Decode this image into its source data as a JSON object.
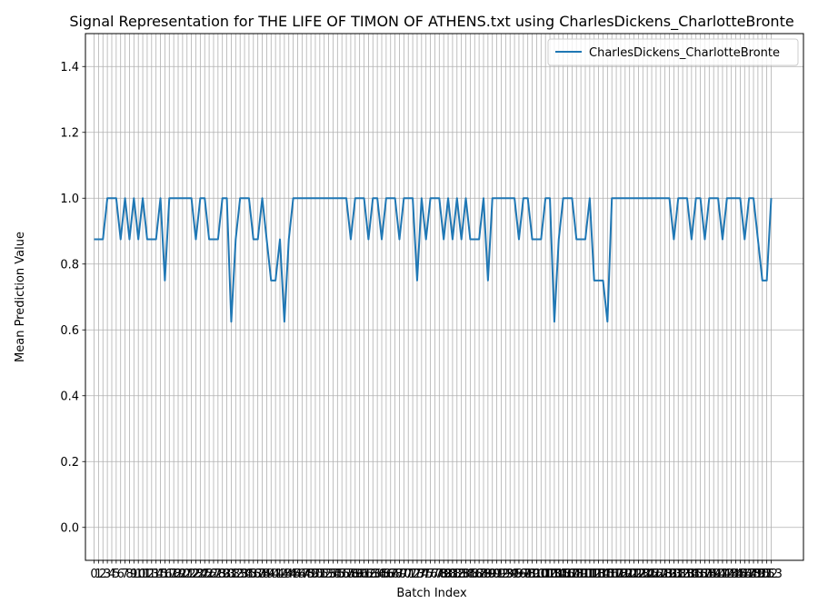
{
  "chart_data": {
    "type": "line",
    "title": "Signal Representation for THE LIFE OF TIMON OF ATHENS.txt using CharlesDickens_CharlotteBronte",
    "xlabel": "Batch Index",
    "ylabel": "Mean Prediction Value",
    "ylim": [
      -0.1,
      1.5
    ],
    "yticks": [
      0.0,
      0.2,
      0.4,
      0.6,
      0.8,
      1.0,
      1.2,
      1.4
    ],
    "grid": true,
    "legend_position": "top-right",
    "series": [
      {
        "name": "CharlesDickens_CharlotteBronte",
        "color": "#1f77b4",
        "values": [
          0.875,
          0.875,
          0.875,
          1,
          1,
          1,
          0.875,
          1,
          0.875,
          1,
          0.875,
          1,
          0.875,
          0.875,
          0.875,
          1,
          0.75,
          1,
          1,
          1,
          1,
          1,
          1,
          0.875,
          1,
          1,
          0.875,
          0.875,
          0.875,
          1,
          1,
          0.625,
          0.875,
          1,
          1,
          1,
          0.875,
          0.875,
          1,
          0.875,
          0.75,
          0.75,
          0.875,
          0.625,
          0.875,
          1,
          1,
          1,
          1,
          1,
          1,
          1,
          1,
          1,
          1,
          1,
          1,
          1,
          0.875,
          1,
          1,
          1,
          0.875,
          1,
          1,
          0.875,
          1,
          1,
          1,
          0.875,
          1,
          1,
          1,
          0.75,
          1,
          0.875,
          1,
          1,
          1,
          0.875,
          1,
          0.875,
          1,
          0.875,
          1,
          0.875,
          0.875,
          0.875,
          1,
          0.75,
          1,
          1,
          1,
          1,
          1,
          1,
          0.875,
          1,
          1,
          0.875,
          0.875,
          0.875,
          1,
          1,
          0.625,
          0.875,
          1,
          1,
          1,
          0.875,
          0.875,
          0.875,
          1,
          0.75,
          0.75,
          0.75,
          0.625,
          1,
          1,
          1,
          1,
          1,
          1,
          1,
          1,
          1,
          1,
          1,
          1,
          1,
          1,
          0.875,
          1,
          1,
          1,
          0.875,
          1,
          1,
          0.875,
          1,
          1,
          1,
          0.875,
          1,
          1,
          1,
          1,
          0.875,
          1,
          1,
          0.875,
          0.75,
          0.75,
          1
        ]
      }
    ]
  }
}
